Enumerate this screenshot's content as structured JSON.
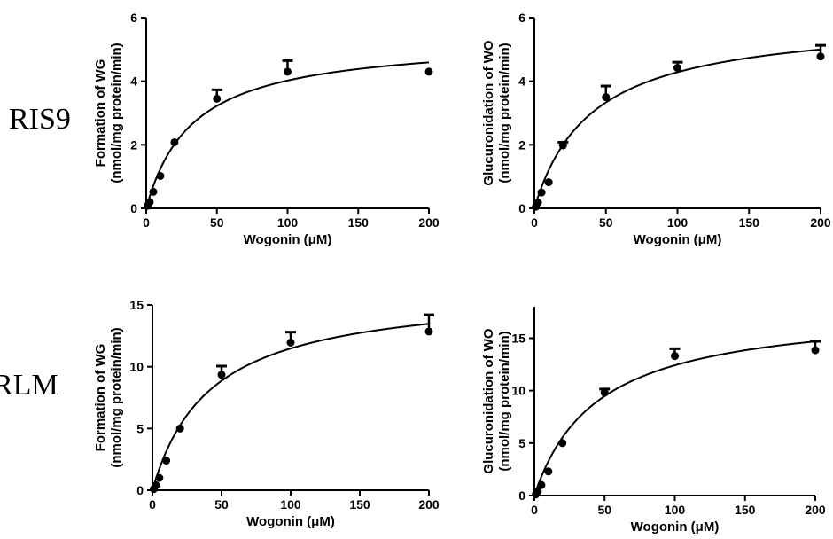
{
  "row_labels": [
    "RIS9",
    "RLM"
  ],
  "chart_data": [
    {
      "type": "scatter",
      "row": "RIS9",
      "xlabel": "Wogonin (μM)",
      "ylabel_lines": [
        "Formation of WG",
        "(nmol/mg protein/min)"
      ],
      "xlim": [
        0,
        200
      ],
      "ylim": [
        0,
        6
      ],
      "xticks": [
        0,
        50,
        100,
        150,
        200
      ],
      "yticks": [
        0,
        2,
        4,
        6
      ],
      "grid": false,
      "legend": "none",
      "points": [
        {
          "x": 1,
          "y": 0.08,
          "err": 0
        },
        {
          "x": 2.5,
          "y": 0.2,
          "err": 0
        },
        {
          "x": 5,
          "y": 0.52,
          "err": 0
        },
        {
          "x": 10,
          "y": 1.02,
          "err": 0
        },
        {
          "x": 20,
          "y": 2.08,
          "err": 0
        },
        {
          "x": 50,
          "y": 3.45,
          "err": 0.28
        },
        {
          "x": 100,
          "y": 4.3,
          "err": 0.35
        },
        {
          "x": 200,
          "y": 4.3,
          "err": 0
        }
      ],
      "fit": {
        "model": "Michaelis-Menten",
        "vmax": 5.35,
        "km": 33
      }
    },
    {
      "type": "scatter",
      "row": "RIS9",
      "xlabel": "Wogonin (μM)",
      "ylabel_lines": [
        "Glucuronidation of WO",
        "(nmol/mg protein/min)"
      ],
      "xlim": [
        0,
        200
      ],
      "ylim": [
        0,
        6
      ],
      "xticks": [
        0,
        50,
        100,
        150,
        200
      ],
      "yticks": [
        0,
        2,
        4,
        6
      ],
      "grid": false,
      "legend": "none",
      "points": [
        {
          "x": 1,
          "y": 0.05,
          "err": 0
        },
        {
          "x": 2.5,
          "y": 0.18,
          "err": 0
        },
        {
          "x": 5,
          "y": 0.5,
          "err": 0
        },
        {
          "x": 10,
          "y": 0.82,
          "err": 0
        },
        {
          "x": 20,
          "y": 1.98,
          "err": 0.1
        },
        {
          "x": 50,
          "y": 3.5,
          "err": 0.35
        },
        {
          "x": 100,
          "y": 4.42,
          "err": 0.18
        },
        {
          "x": 200,
          "y": 4.78,
          "err": 0.35
        }
      ],
      "fit": {
        "model": "Michaelis-Menten",
        "vmax": 6.0,
        "km": 40
      }
    },
    {
      "type": "scatter",
      "row": "RLM",
      "xlabel": "Wogonin (μM)",
      "ylabel_lines": [
        "Formation of WG",
        "(nmol/mg protein/min)"
      ],
      "xlim": [
        0,
        200
      ],
      "ylim": [
        0,
        15
      ],
      "xticks": [
        0,
        50,
        100,
        150,
        200
      ],
      "yticks": [
        0,
        5,
        10,
        15
      ],
      "grid": false,
      "legend": "none",
      "points": [
        {
          "x": 1,
          "y": 0.1,
          "err": 0
        },
        {
          "x": 2.5,
          "y": 0.4,
          "err": 0
        },
        {
          "x": 5,
          "y": 1.0,
          "err": 0
        },
        {
          "x": 10,
          "y": 2.4,
          "err": 0
        },
        {
          "x": 20,
          "y": 5.0,
          "err": 0
        },
        {
          "x": 50,
          "y": 9.35,
          "err": 0.7
        },
        {
          "x": 100,
          "y": 11.95,
          "err": 0.85
        },
        {
          "x": 200,
          "y": 12.85,
          "err": 1.35
        }
      ],
      "fit": {
        "model": "Michaelis-Menten",
        "vmax": 16.3,
        "km": 42
      }
    },
    {
      "type": "scatter",
      "row": "RLM",
      "xlabel": "Wogonin (μM)",
      "ylabel_lines": [
        "Glucuronidation of WO",
        "(nmol/mg protein/min)"
      ],
      "xlim": [
        0,
        200
      ],
      "ylim": [
        0,
        18
      ],
      "xticks": [
        0,
        50,
        100,
        150,
        200
      ],
      "yticks": [
        0,
        5,
        10,
        15
      ],
      "grid": false,
      "legend": "none",
      "points": [
        {
          "x": 1,
          "y": 0.1,
          "err": 0
        },
        {
          "x": 2.5,
          "y": 0.4,
          "err": 0
        },
        {
          "x": 5,
          "y": 1.0,
          "err": 0
        },
        {
          "x": 10,
          "y": 2.3,
          "err": 0
        },
        {
          "x": 20,
          "y": 5.0,
          "err": 0
        },
        {
          "x": 50,
          "y": 9.8,
          "err": 0.35
        },
        {
          "x": 100,
          "y": 13.3,
          "err": 0.7
        },
        {
          "x": 200,
          "y": 13.85,
          "err": 0.85
        }
      ],
      "fit": {
        "model": "Michaelis-Menten",
        "vmax": 18.0,
        "km": 45
      }
    }
  ]
}
